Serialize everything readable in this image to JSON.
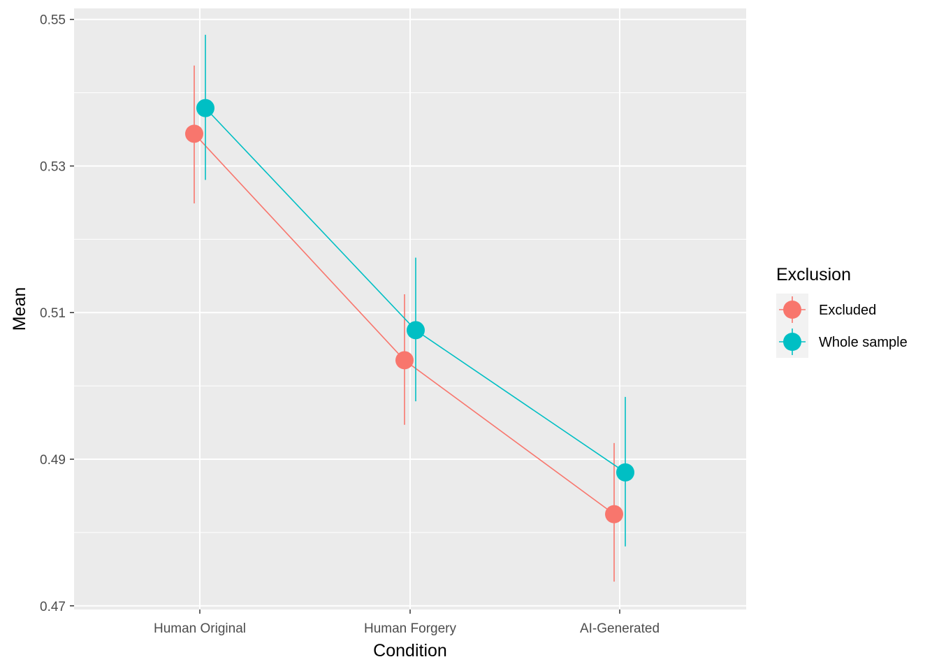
{
  "chart_data": {
    "type": "line",
    "xlabel": "Condition",
    "ylabel": "Mean",
    "categories": [
      "Human Original",
      "Human Forgery",
      "AI-Generated"
    ],
    "ylim": [
      0.4695,
      0.5515
    ],
    "yticks": [
      "0.47",
      "0.49",
      "0.51",
      "0.53",
      "0.55"
    ],
    "grid": true,
    "legend": {
      "title": "Exclusion",
      "position": "right"
    },
    "series": [
      {
        "name": "Excluded",
        "color": "#F8766D",
        "values": [
          0.5344,
          0.5035,
          0.4825
        ],
        "lower": [
          0.5249,
          0.4947,
          0.4733
        ],
        "upper": [
          0.5437,
          0.5125,
          0.4922
        ]
      },
      {
        "name": "Whole sample",
        "color": "#00BFC4",
        "values": [
          0.5379,
          0.5076,
          0.4882
        ],
        "lower": [
          0.5281,
          0.4979,
          0.4781
        ],
        "upper": [
          0.5479,
          0.5175,
          0.4985
        ]
      }
    ]
  }
}
